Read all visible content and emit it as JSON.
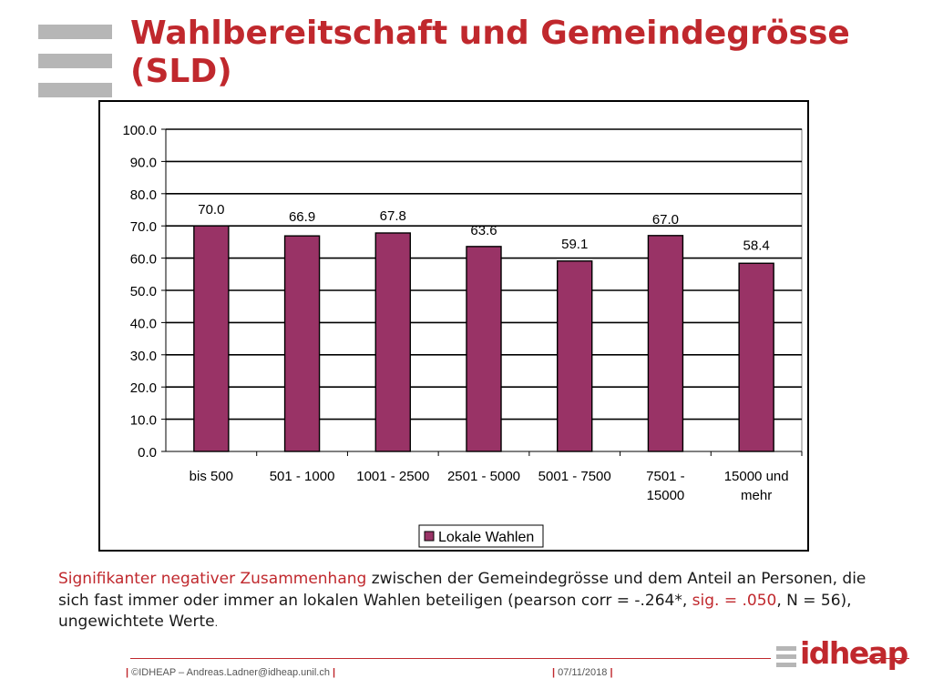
{
  "slide": {
    "title": "Wahlbereitschaft und Gemeindegrösse (SLD)",
    "note_parts": [
      {
        "text": "Signifikanter negativer Zusammenhang",
        "style": "red"
      },
      {
        "text": " zwischen der Gemeindegrösse und dem Anteil an Personen, die sich fast immer oder immer an lokalen Wahlen beteiligen (pearson corr = -.264*, ",
        "style": "normal"
      },
      {
        "text": "sig. = .050",
        "style": "red"
      },
      {
        "text": ", N = 56), ungewichtete Werte",
        "style": "normal"
      },
      {
        "text": ".",
        "style": "small"
      }
    ]
  },
  "footer": {
    "left_text": "©IDHEAP – Andreas.Ladner@idheap.unil.ch",
    "date": "07/11/2018",
    "pipe": "|",
    "logo_text": "idheap"
  },
  "colors": {
    "accent": "#c0282d",
    "bar_fill": "#993366",
    "deco_gray": "#b6b6b6"
  },
  "chart_data": {
    "type": "bar",
    "categories": [
      [
        "bis 500"
      ],
      [
        "501 - 1000"
      ],
      [
        "1001 - 2500"
      ],
      [
        "2501 - 5000"
      ],
      [
        "5001 - 7500"
      ],
      [
        "7501 -",
        "15000"
      ],
      [
        "15000 und",
        "mehr"
      ]
    ],
    "series": [
      {
        "name": "Lokale Wahlen",
        "values": [
          70.0,
          66.9,
          67.8,
          63.6,
          59.1,
          67.0,
          58.4
        ]
      }
    ],
    "data_labels": [
      "70.0",
      "66.9",
      "67.8",
      "63.6",
      "59.1",
      "67.0",
      "58.4"
    ],
    "yticks": [
      "0.0",
      "10.0",
      "20.0",
      "30.0",
      "40.0",
      "50.0",
      "60.0",
      "70.0",
      "80.0",
      "90.0",
      "100.0"
    ],
    "ylim": [
      0,
      100
    ],
    "ystep": 10,
    "grid": true,
    "legend": "bottom"
  }
}
